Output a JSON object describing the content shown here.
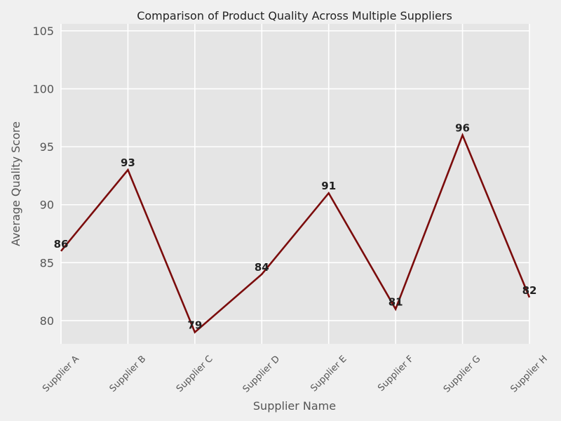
{
  "chart_data": {
    "type": "line",
    "title": "Comparison of Product Quality Across Multiple Suppliers",
    "xlabel": "Supplier Name",
    "ylabel": "Average Quality Score",
    "categories": [
      "Supplier A",
      "Supplier B",
      "Supplier C",
      "Supplier D",
      "Supplier E",
      "Supplier F",
      "Supplier G",
      "Supplier H"
    ],
    "values": [
      86,
      93,
      79,
      84,
      91,
      81,
      96,
      82
    ],
    "ylim": [
      78,
      105.6
    ],
    "yticks": [
      80,
      85,
      90,
      95,
      100,
      105
    ],
    "grid": true,
    "colors": {
      "line": "#7b0c0c",
      "plot_bg": "#e5e5e5",
      "figure_bg": "#f0f0f0",
      "grid": "#ffffff"
    }
  }
}
